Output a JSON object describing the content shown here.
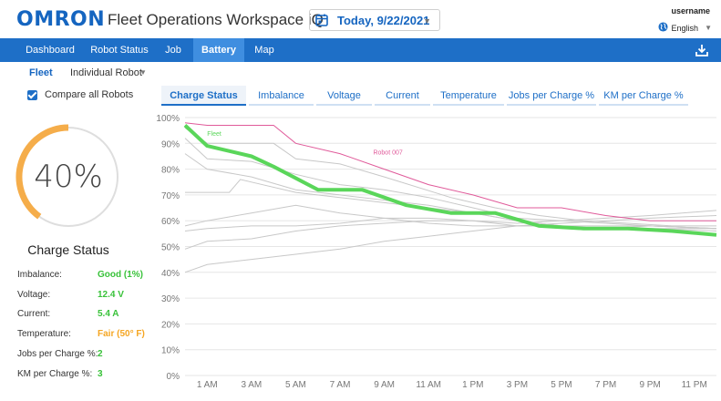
{
  "header": {
    "logo": "OMRON",
    "title": "Fleet Operations Workspace iQ",
    "date": "Today, 9/22/2021",
    "username": "username",
    "language": "English",
    "icons": [
      "calendar-icon",
      "caret-down-icon",
      "globe-icon",
      "download-icon"
    ]
  },
  "nav": {
    "tabs": [
      "Dashboard",
      "Robot Status",
      "Job",
      "Battery",
      "Map"
    ],
    "active": "Battery"
  },
  "subnav": {
    "fleet": "Fleet",
    "robot": "Individual Robot"
  },
  "compare": {
    "label": "Compare all Robots",
    "checked": true
  },
  "gauge": {
    "value": "40%",
    "fraction": 0.4,
    "title": "Charge Status",
    "color": "#f5ad4a"
  },
  "stats": [
    {
      "label": "Imbalance:",
      "value": "Good (1%)",
      "status": "good"
    },
    {
      "label": "Voltage:",
      "value": "12.4 V",
      "status": "good"
    },
    {
      "label": "Current:",
      "value": "5.4 A",
      "status": "good"
    },
    {
      "label": "Temperature:",
      "value": "Fair (50° F)",
      "status": "fair"
    },
    {
      "label": "Jobs per Charge %:",
      "value": "2",
      "status": "good"
    },
    {
      "label": "KM per Charge %:",
      "value": "3",
      "status": "good"
    }
  ],
  "chart_tabs": [
    "Charge Status",
    "Imbalance",
    "Voltage",
    "Current",
    "Temperature",
    "Jobs per Charge %",
    "KM per Charge %"
  ],
  "chart_data": {
    "type": "line",
    "title": "",
    "xlabel": "",
    "ylabel": "",
    "y_ticks": [
      "100%",
      "90%",
      "80%",
      "70%",
      "60%",
      "50%",
      "40%",
      "30%",
      "20%",
      "10%",
      "0%"
    ],
    "ylim": [
      0,
      100
    ],
    "x_ticks": [
      "1 AM",
      "3 AM",
      "5 AM",
      "7 AM",
      "9 AM",
      "11 AM",
      "1 PM",
      "3 PM",
      "5 PM",
      "7 PM",
      "9 PM",
      "11 PM"
    ],
    "xlim": [
      0,
      24
    ],
    "grid": "horizontal",
    "colors": {
      "fleet": "#5ad65a",
      "highlight": "#e05a9a",
      "other": "#c8c8c8"
    },
    "series": [
      {
        "name": "Fleet",
        "role": "fleet",
        "x": [
          0,
          1,
          3,
          4,
          6,
          8,
          9,
          10,
          12,
          14,
          16,
          18,
          20,
          22,
          24
        ],
        "y": [
          97,
          89,
          85,
          81,
          72,
          72,
          69,
          66,
          63,
          63,
          58,
          57,
          57,
          56,
          54.5
        ]
      },
      {
        "name": "Robot 007",
        "role": "highlight",
        "x": [
          0,
          1,
          4,
          5,
          7,
          9,
          11,
          13,
          15,
          17,
          19,
          21,
          24
        ],
        "y": [
          98,
          97,
          97,
          90,
          86,
          80,
          74,
          70,
          65,
          65,
          62,
          60,
          60
        ]
      },
      {
        "role": "other",
        "x": [
          0,
          1,
          4,
          5,
          7,
          9,
          12,
          14,
          16,
          18,
          20,
          22,
          24
        ],
        "y": [
          96,
          90,
          90,
          84,
          82,
          77,
          69,
          65,
          62,
          60,
          59,
          58,
          58
        ]
      },
      {
        "role": "other",
        "x": [
          0,
          1,
          3,
          5,
          7,
          9,
          11,
          13,
          15,
          17,
          19,
          21,
          24
        ],
        "y": [
          92,
          84,
          83,
          78,
          74,
          72,
          69,
          65,
          61,
          60,
          59,
          58,
          57
        ]
      },
      {
        "role": "other",
        "x": [
          0,
          1,
          3,
          5,
          7,
          9,
          11,
          13,
          15,
          17,
          19,
          21,
          24
        ],
        "y": [
          86,
          80,
          77,
          72,
          70,
          68,
          66,
          63,
          60,
          58,
          57,
          57,
          57
        ]
      },
      {
        "role": "other",
        "x": [
          0,
          1,
          2,
          2.5,
          3,
          5,
          7,
          9,
          11,
          13,
          15,
          17,
          19,
          21,
          24
        ],
        "y": [
          71,
          71,
          71,
          76,
          75,
          71,
          69,
          67,
          65,
          63,
          60,
          58,
          57,
          57,
          56
        ]
      },
      {
        "role": "other",
        "x": [
          0,
          1,
          3,
          5,
          7,
          9,
          11,
          13,
          15,
          17,
          19,
          21,
          24
        ],
        "y": [
          58,
          60,
          63,
          66,
          63,
          61,
          59,
          58,
          58,
          58,
          58,
          58,
          57
        ]
      },
      {
        "role": "other",
        "x": [
          0,
          1,
          3,
          5,
          7,
          9,
          11,
          13,
          15,
          17,
          19,
          21,
          24
        ],
        "y": [
          56,
          57,
          58,
          58,
          59,
          61,
          61,
          60,
          58,
          58,
          57,
          58,
          57
        ]
      },
      {
        "role": "other",
        "x": [
          0,
          1,
          3,
          5,
          7,
          9,
          11,
          13,
          15,
          17,
          19,
          21,
          24
        ],
        "y": [
          49,
          52,
          53,
          56,
          58,
          59,
          60,
          60,
          59,
          60,
          61,
          62,
          64
        ]
      },
      {
        "role": "other",
        "x": [
          0,
          1,
          3,
          5,
          7,
          9,
          11,
          13,
          15,
          17,
          19,
          21,
          24
        ],
        "y": [
          40,
          43,
          45,
          47,
          49,
          52,
          54,
          56,
          58,
          59,
          60,
          61,
          62
        ]
      }
    ]
  }
}
